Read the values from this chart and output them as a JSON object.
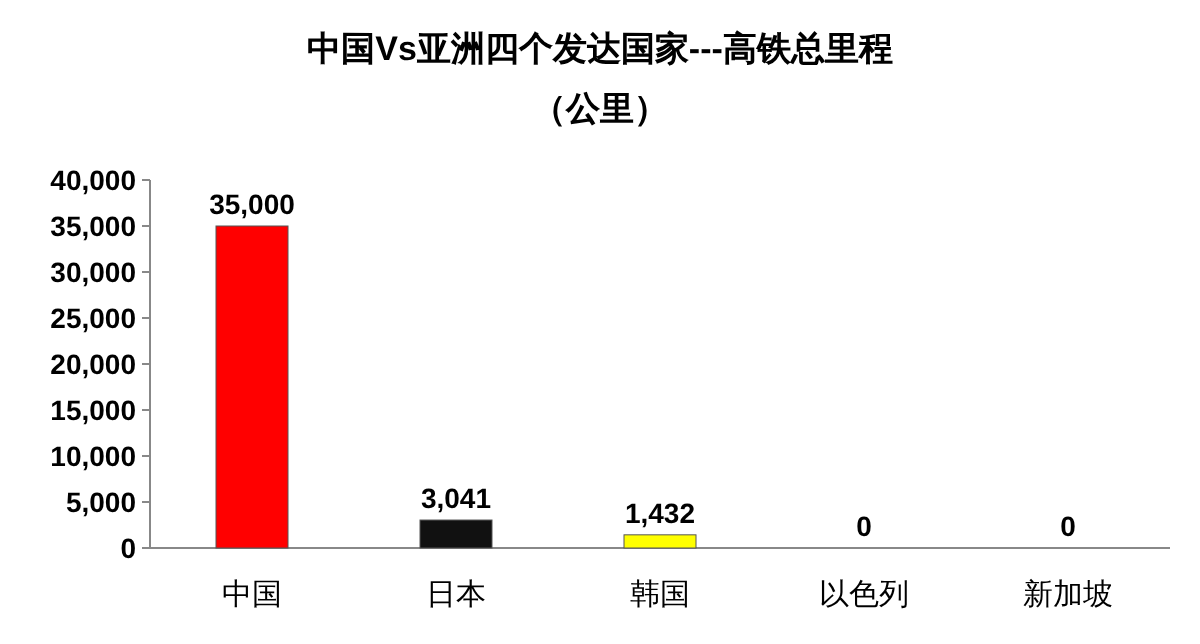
{
  "chart_data": {
    "type": "bar",
    "title": "中国Vs亚洲四个发达国家---高铁总里程",
    "subtitle": "（公里）",
    "categories": [
      "中国",
      "日本",
      "韩国",
      "以色列",
      "新加坡"
    ],
    "values": [
      35000,
      3041,
      1432,
      0,
      0
    ],
    "colors": [
      "#ff0000",
      "#111111",
      "#ffff00",
      "#cccccc",
      "#cccccc"
    ],
    "value_labels": [
      "35,000",
      "3,041",
      "1,432",
      "0",
      "0"
    ],
    "ylim": [
      0,
      40000
    ],
    "yticks": [
      {
        "value": 0,
        "label": "0"
      },
      {
        "value": 5000,
        "label": "5,000"
      },
      {
        "value": 10000,
        "label": "10,000"
      },
      {
        "value": 15000,
        "label": "15,000"
      },
      {
        "value": 20000,
        "label": "20,000"
      },
      {
        "value": 25000,
        "label": "25,000"
      },
      {
        "value": 30000,
        "label": "30,000"
      },
      {
        "value": 35000,
        "label": "35,000"
      },
      {
        "value": 40000,
        "label": "40,000"
      }
    ]
  }
}
